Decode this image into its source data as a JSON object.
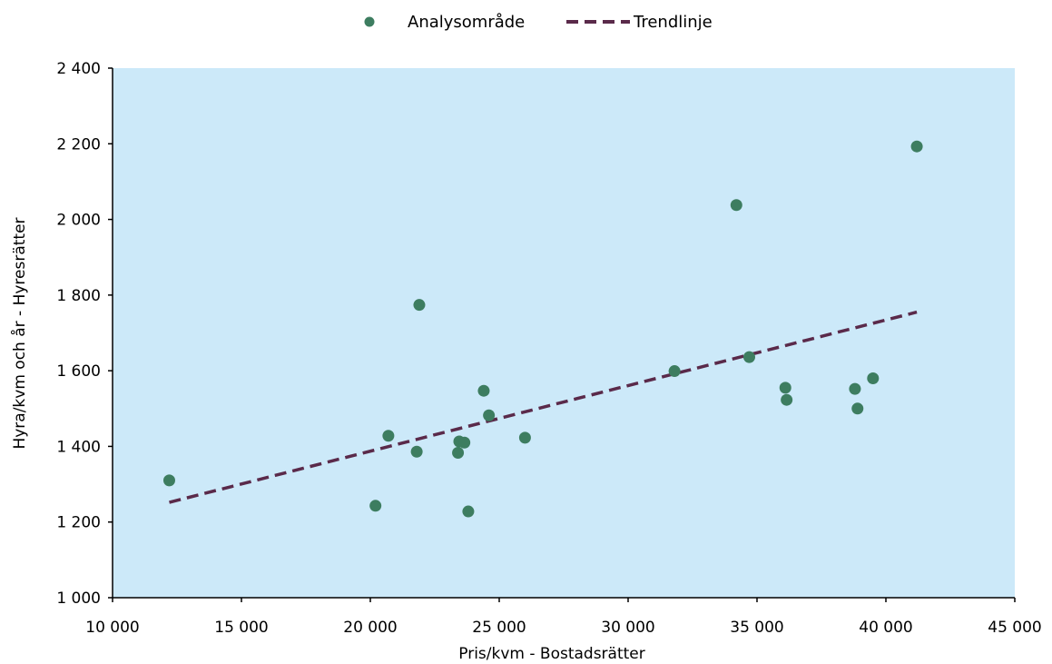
{
  "chart_data": {
    "type": "scatter",
    "title": "",
    "xlabel": "Pris/kvm - Bostadsrätter",
    "ylabel": "Hyra/kvm och år - Hyresrätter",
    "xlim": [
      10000,
      45000
    ],
    "ylim": [
      1000,
      2400
    ],
    "x_ticks": [
      10000,
      15000,
      20000,
      25000,
      30000,
      35000,
      40000,
      45000
    ],
    "y_ticks": [
      1000,
      1200,
      1400,
      1600,
      1800,
      2000,
      2200,
      2400
    ],
    "x_tick_labels": [
      "10 000",
      "15 000",
      "20 000",
      "25 000",
      "30 000",
      "35 000",
      "40 000",
      "45 000"
    ],
    "y_tick_labels": [
      "1 000",
      "1 200",
      "1 400",
      "1 600",
      "1 800",
      "2 000",
      "2 200",
      "2 400"
    ],
    "grid": false,
    "legend_position": "top-center",
    "plot_background": "#cce9f9",
    "series": [
      {
        "name": "Analysområde",
        "type": "scatter",
        "color": "#3d7d60",
        "points": [
          {
            "x": 12200,
            "y": 1310
          },
          {
            "x": 20200,
            "y": 1243
          },
          {
            "x": 20700,
            "y": 1428
          },
          {
            "x": 21800,
            "y": 1386
          },
          {
            "x": 21900,
            "y": 1774
          },
          {
            "x": 23400,
            "y": 1383
          },
          {
            "x": 23450,
            "y": 1413
          },
          {
            "x": 23650,
            "y": 1410
          },
          {
            "x": 23800,
            "y": 1228
          },
          {
            "x": 24400,
            "y": 1547
          },
          {
            "x": 24600,
            "y": 1482
          },
          {
            "x": 26000,
            "y": 1423
          },
          {
            "x": 31800,
            "y": 1599
          },
          {
            "x": 34200,
            "y": 2038
          },
          {
            "x": 34700,
            "y": 1636
          },
          {
            "x": 36100,
            "y": 1555
          },
          {
            "x": 36150,
            "y": 1523
          },
          {
            "x": 38800,
            "y": 1552
          },
          {
            "x": 38900,
            "y": 1500
          },
          {
            "x": 39500,
            "y": 1580
          },
          {
            "x": 41200,
            "y": 2193
          }
        ]
      },
      {
        "name": "Trendlinje",
        "type": "line",
        "style": "dashed",
        "color": "#5a2a4a",
        "points": [
          {
            "x": 12200,
            "y": 1252
          },
          {
            "x": 41200,
            "y": 1755
          }
        ]
      }
    ]
  }
}
